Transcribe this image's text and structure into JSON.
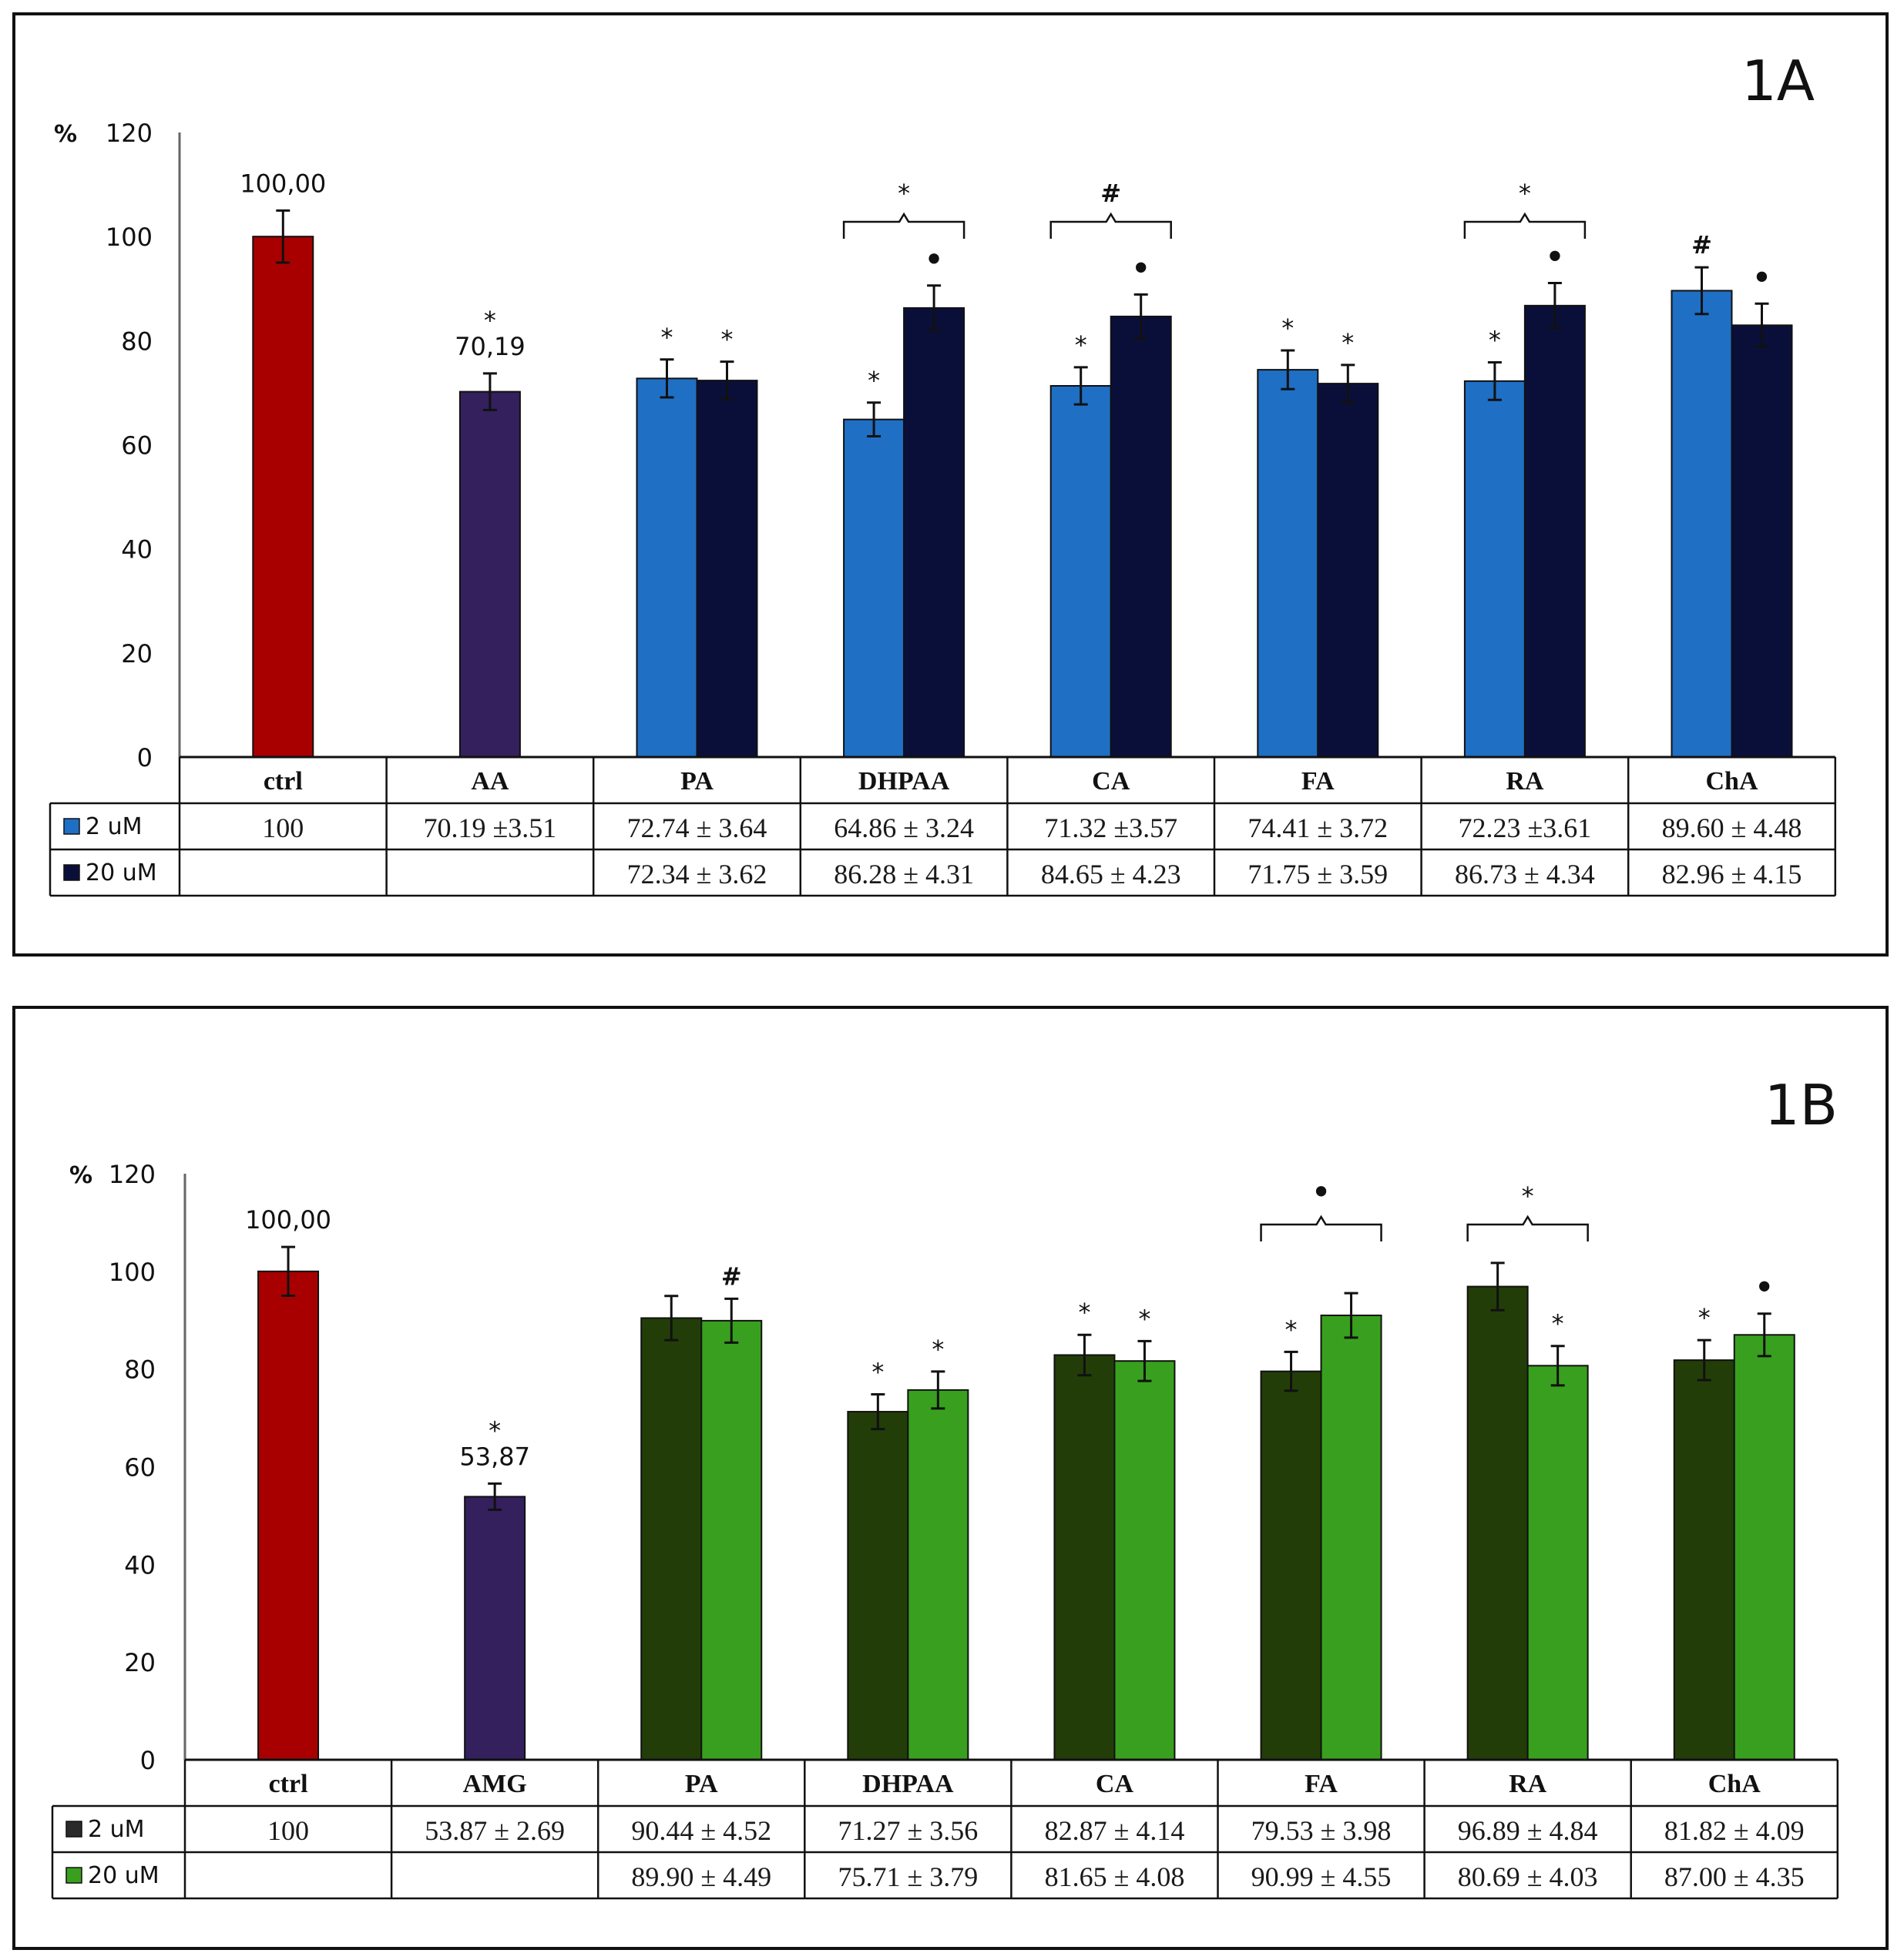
{
  "chart_data": [
    {
      "type": "bar",
      "title": "1A",
      "ylabel": "%",
      "ylim": [
        0,
        120
      ],
      "yticks": [
        "0",
        "20",
        "40",
        "60",
        "80",
        "100",
        "120"
      ],
      "categories": [
        "ctrl",
        "AA",
        "PA",
        "DHPAA",
        "CA",
        "FA",
        "RA",
        "ChA"
      ],
      "series": [
        {
          "name": "2 uM",
          "color": "#1f6fc5",
          "values": [
            null,
            null,
            72.74,
            64.86,
            71.32,
            74.41,
            72.23,
            89.6
          ],
          "errors": [
            null,
            null,
            3.64,
            3.24,
            3.57,
            3.72,
            3.61,
            4.48
          ],
          "marks": [
            "",
            "",
            "*",
            "*",
            "*",
            "*",
            "*",
            "#"
          ]
        },
        {
          "name": "20 uM",
          "color": "#0a0f3a",
          "values": [
            null,
            null,
            72.34,
            86.28,
            84.65,
            71.75,
            86.73,
            82.96
          ],
          "errors": [
            null,
            null,
            3.62,
            4.31,
            4.23,
            3.59,
            4.34,
            4.15
          ],
          "marks": [
            "",
            "",
            "*",
            "•",
            "•",
            "*",
            "•",
            "•"
          ]
        }
      ],
      "singles": [
        {
          "category": "ctrl",
          "value": 100.0,
          "error": 5.0,
          "color": "#a80000",
          "mark": "",
          "label": "100,00"
        },
        {
          "category": "AA",
          "value": 70.19,
          "error": 3.51,
          "color": "#34205c",
          "mark": "*",
          "label": "70,19"
        }
      ],
      "brackets": [
        {
          "category": "DHPAA",
          "mark": "*"
        },
        {
          "category": "CA",
          "mark": "#"
        },
        {
          "category": "RA",
          "mark": "*"
        }
      ],
      "table": {
        "header": [
          "ctrl",
          "AA",
          "PA",
          "DHPAA",
          "CA",
          "FA",
          "RA",
          "ChA"
        ],
        "rows": [
          {
            "legend": "2 uM",
            "color": "#1f6fc5",
            "cells": [
              "100",
              "70.19 ±3.51",
              "72.74 ± 3.64",
              "64.86 ± 3.24",
              "71.32 ±3.57",
              "74.41 ± 3.72",
              "72.23 ±3.61",
              "89.60 ± 4.48"
            ]
          },
          {
            "legend": "20 uM",
            "color": "#0a0f3a",
            "cells": [
              "",
              "",
              "72.34 ± 3.62",
              "86.28 ± 4.31",
              "84.65 ± 4.23",
              "71.75 ± 3.59",
              "86.73 ± 4.34",
              "82.96 ± 4.15"
            ]
          }
        ]
      }
    },
    {
      "type": "bar",
      "title": "1B",
      "ylabel": "%",
      "ylim": [
        0,
        120
      ],
      "yticks": [
        "0",
        "20",
        "40",
        "60",
        "80",
        "100",
        "120"
      ],
      "categories": [
        "ctrl",
        "AMG",
        "PA",
        "DHPAA",
        "CA",
        "FA",
        "RA",
        "ChA"
      ],
      "series": [
        {
          "name": "2 uM",
          "color": "#233d08",
          "values": [
            null,
            null,
            90.44,
            71.27,
            82.87,
            79.53,
            96.89,
            81.82
          ],
          "errors": [
            null,
            null,
            4.52,
            3.56,
            4.14,
            3.98,
            4.84,
            4.09
          ],
          "marks": [
            "",
            "",
            "",
            "*",
            "*",
            "*",
            "",
            "*"
          ]
        },
        {
          "name": "20 uM",
          "color": "#38a01e",
          "values": [
            null,
            null,
            89.9,
            75.71,
            81.65,
            90.99,
            80.69,
            87.0
          ],
          "errors": [
            null,
            null,
            4.49,
            3.79,
            4.08,
            4.55,
            4.03,
            4.35
          ],
          "marks": [
            "",
            "",
            "#",
            "*",
            "*",
            "",
            "*",
            "•"
          ]
        }
      ],
      "singles": [
        {
          "category": "ctrl",
          "value": 100.0,
          "error": 5.0,
          "color": "#a80000",
          "mark": "",
          "label": "100,00"
        },
        {
          "category": "AMG",
          "value": 53.87,
          "error": 2.69,
          "color": "#34205c",
          "mark": "*",
          "label": "53,87"
        }
      ],
      "brackets": [
        {
          "category": "FA",
          "mark": "•"
        },
        {
          "category": "RA",
          "mark": "*"
        }
      ],
      "table": {
        "header": [
          "ctrl",
          "AMG",
          "PA",
          "DHPAA",
          "CA",
          "FA",
          "RA",
          "ChA"
        ],
        "rows": [
          {
            "legend": "2 uM",
            "color": "#2a2a2a",
            "cells": [
              "100",
              "53.87 ± 2.69",
              "90.44 ± 4.52",
              "71.27 ± 3.56",
              "82.87 ± 4.14",
              "79.53 ± 3.98",
              "96.89 ± 4.84",
              "81.82 ± 4.09"
            ]
          },
          {
            "legend": "20 uM",
            "color": "#38a01e",
            "cells": [
              "",
              "",
              "89.90 ± 4.49",
              "75.71 ± 3.79",
              "81.65 ± 4.08",
              "90.99 ± 4.55",
              "80.69 ± 4.03",
              "87.00 ± 4.35"
            ]
          }
        ]
      }
    }
  ]
}
